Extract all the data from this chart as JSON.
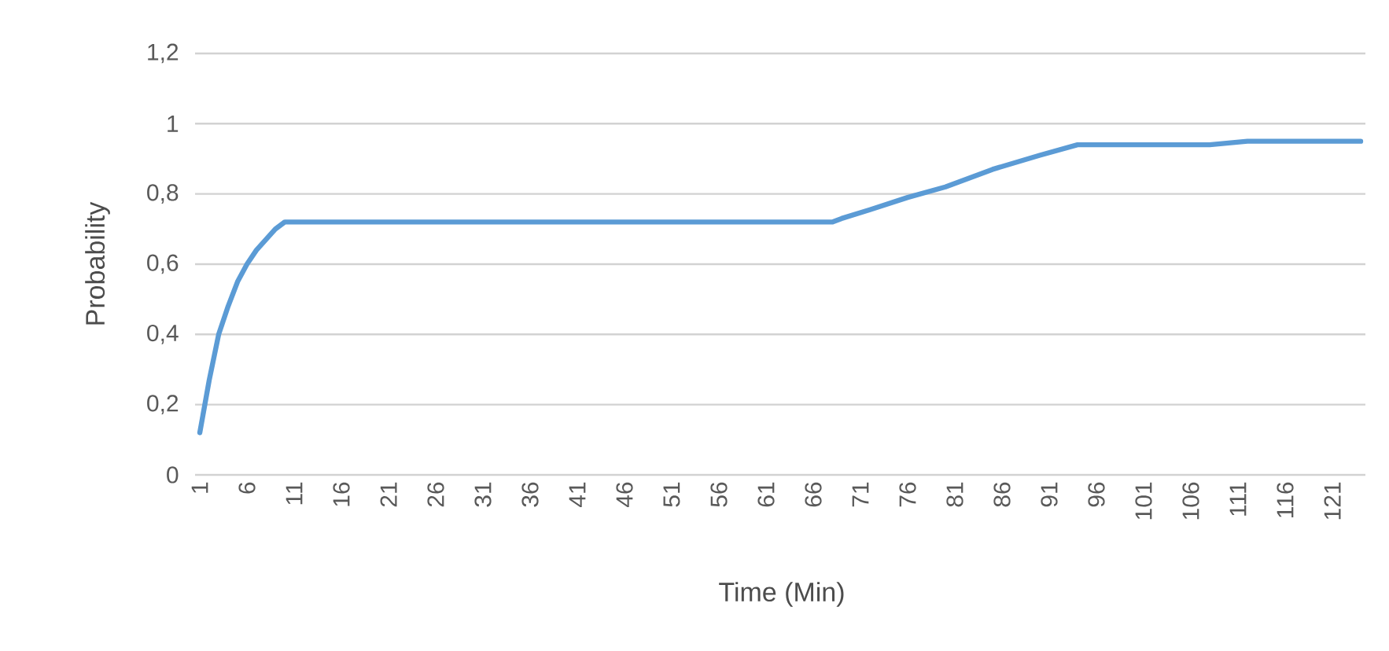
{
  "chart_data": {
    "type": "line",
    "xlabel": "Time (Min)",
    "ylabel": "Probability",
    "x": [
      1,
      2,
      3,
      4,
      5,
      6,
      7,
      8,
      9,
      10,
      68,
      69,
      72,
      76,
      80,
      85,
      90,
      94,
      108,
      112,
      124
    ],
    "series": [
      {
        "color": "#5b9bd5",
        "values": [
          0.12,
          0.27,
          0.4,
          0.48,
          0.55,
          0.6,
          0.64,
          0.67,
          0.7,
          0.72,
          0.72,
          0.73,
          0.755,
          0.79,
          0.82,
          0.87,
          0.91,
          0.94,
          0.94,
          0.95,
          0.95
        ]
      }
    ],
    "xlim": [
      0.5,
      124.5
    ],
    "xticks": [
      1,
      6,
      11,
      16,
      21,
      26,
      31,
      36,
      41,
      46,
      51,
      56,
      61,
      66,
      71,
      76,
      81,
      86,
      91,
      96,
      101,
      106,
      111,
      116,
      121
    ],
    "ylim": [
      0,
      1.2
    ],
    "yticks": [
      0,
      {
        "value": 0.2,
        "label": "0,2"
      },
      {
        "value": 0.4,
        "label": "0,4"
      },
      {
        "value": 0.6,
        "label": "0,6"
      },
      {
        "value": 0.8,
        "label": "0,8"
      },
      1,
      {
        "value": 1.2,
        "label": "1,2"
      }
    ],
    "grid": "y",
    "marker": "none",
    "line_style": "solid"
  }
}
